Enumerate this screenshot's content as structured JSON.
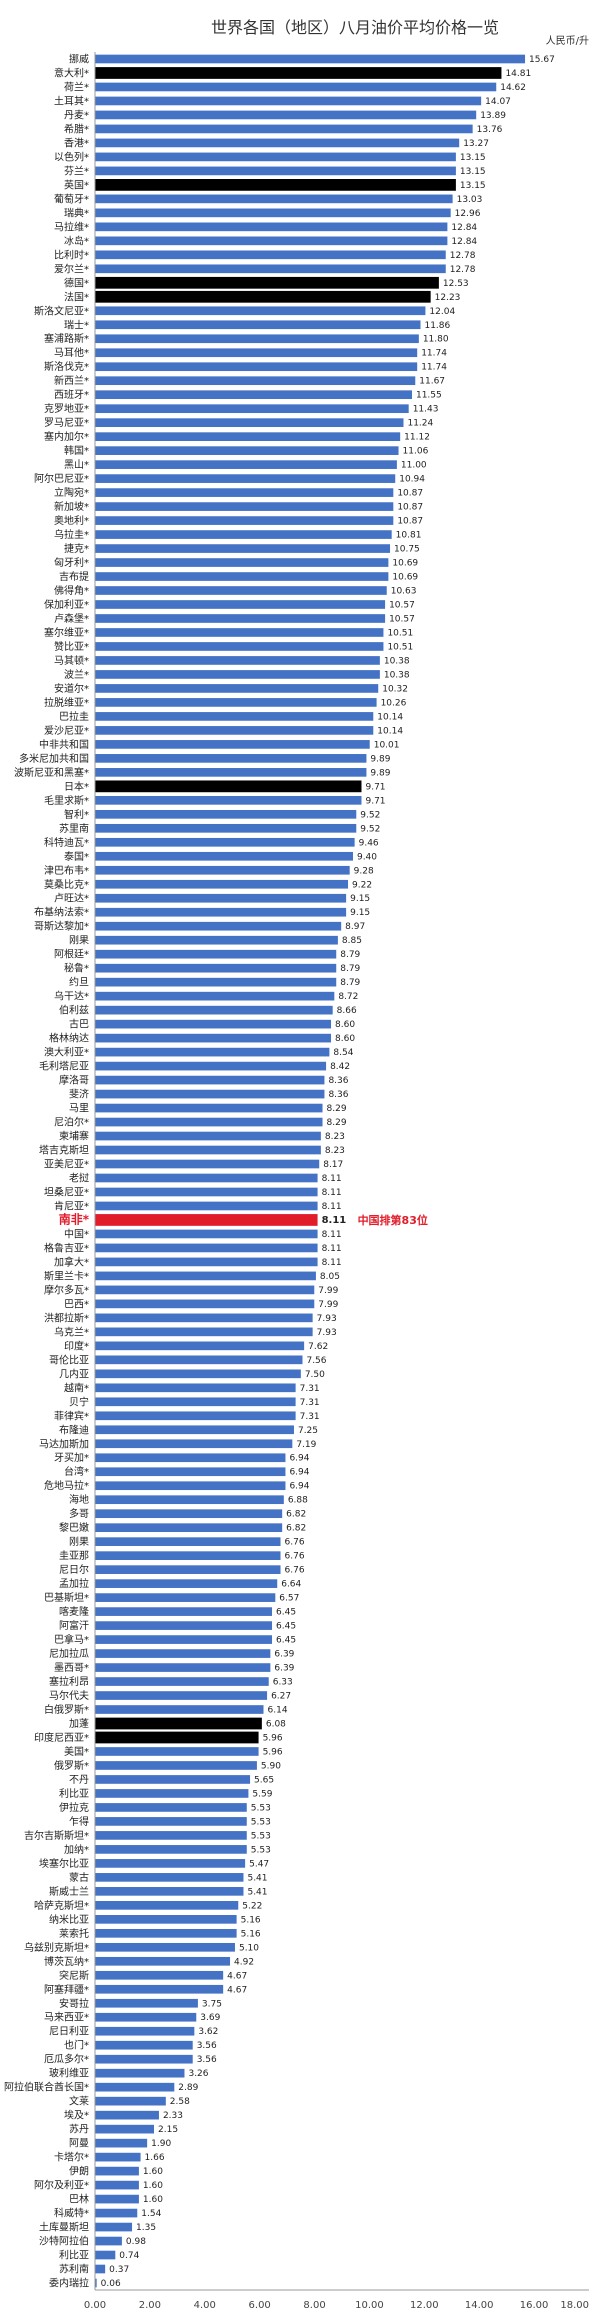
{
  "chart_data": {
    "type": "bar",
    "orientation": "horizontal",
    "title": "世界各国（地区）八月油价平均价格一览",
    "unit_label": "人民币/升",
    "xlim": [
      0,
      18
    ],
    "x_ticks": [
      "0.00",
      "2.00",
      "4.00",
      "6.00",
      "8.00",
      "10.00",
      "12.00",
      "14.00",
      "16.00",
      "18.00"
    ],
    "grid": false,
    "colors": {
      "default": "#4472c4",
      "emphasis": "#000000",
      "highlight": "#e11d2a"
    },
    "annotation": "中国排第83位",
    "categories": [
      "挪威",
      "意大利*",
      "荷兰*",
      "土耳其*",
      "丹麦*",
      "希腊*",
      "香港*",
      "以色列*",
      "芬兰*",
      "英国*",
      "葡萄牙*",
      "瑞典*",
      "马拉维*",
      "冰岛*",
      "比利时*",
      "爱尔兰*",
      "德国*",
      "法国*",
      "斯洛文尼亚*",
      "瑞士*",
      "塞浦路斯*",
      "马耳他*",
      "斯洛伐克*",
      "新西兰*",
      "西班牙*",
      "克罗地亚*",
      "罗马尼亚*",
      "塞内加尔*",
      "韩国*",
      "黑山*",
      "阿尔巴尼亚*",
      "立陶宛*",
      "新加坡*",
      "奥地利*",
      "乌拉圭*",
      "捷克*",
      "匈牙利*",
      "吉布提",
      "佛得角*",
      "保加利亚*",
      "卢森堡*",
      "塞尔维亚*",
      "赞比亚*",
      "马其顿*",
      "波兰*",
      "安道尔*",
      "拉脱维亚*",
      "巴拉圭",
      "爱沙尼亚*",
      "中非共和国",
      "多米尼加共和国",
      "波斯尼亚和黑塞*",
      "日本*",
      "毛里求斯*",
      "智利*",
      "苏里南",
      "科特迪瓦*",
      "泰国*",
      "津巴布韦*",
      "莫桑比克*",
      "卢旺达*",
      "布基纳法索*",
      "哥斯达黎加*",
      "刚果",
      "阿根廷*",
      "秘鲁*",
      "约旦",
      "乌干达*",
      "伯利兹",
      "古巴",
      "格林纳达",
      "澳大利亚*",
      "毛利塔尼亚",
      "摩洛哥",
      "斐济",
      "马里",
      "尼泊尔*",
      "柬埔寨",
      "塔吉克斯坦",
      "亚美尼亚*",
      "老挝",
      "坦桑尼亚*",
      "肯尼亚*",
      "南非*",
      "中国*",
      "格鲁吉亚*",
      "加拿大*",
      "斯里兰卡*",
      "摩尔多瓦*",
      "巴西*",
      "洪都拉斯*",
      "乌克兰*",
      "印度*",
      "哥伦比亚",
      "几内亚",
      "越南*",
      "贝宁",
      "菲律宾*",
      "布隆迪",
      "马达加斯加",
      "牙买加*",
      "台湾*",
      "危地马拉*",
      "海地",
      "多哥",
      "黎巴嫩",
      "刚果",
      "圭亚那",
      "尼日尔",
      "孟加拉",
      "巴基斯坦*",
      "喀麦隆",
      "阿富汗",
      "巴拿马*",
      "尼加拉瓜",
      "墨西哥*",
      "塞拉利昂",
      "马尔代夫",
      "白俄罗斯*",
      "加蓬",
      "印度尼西亚*",
      "美国*",
      "俄罗斯*",
      "不丹",
      "利比亚",
      "伊拉克",
      "乍得",
      "吉尔吉斯斯坦*",
      "加纳*",
      "埃塞尔比亚",
      "蒙古",
      "斯威士兰",
      "哈萨克斯坦*",
      "纳米比亚",
      "莱索托",
      "乌兹别克斯坦*",
      "博茨瓦纳*",
      "突尼斯",
      "阿塞拜疆*",
      "安哥拉",
      "马来西亚*",
      "尼日利亚",
      "也门*",
      "厄瓜多尔*",
      "玻利维亚",
      "阿拉伯联合酋长国*",
      "文莱",
      "埃及*",
      "苏丹",
      "阿曼",
      "卡塔尔*",
      "伊朗",
      "阿尔及利亚*",
      "巴林",
      "科威特*",
      "土库曼斯坦",
      "沙特阿拉伯",
      "利比亚",
      "苏利南",
      "委内瑞拉"
    ],
    "values": [
      15.67,
      14.81,
      14.62,
      14.07,
      13.89,
      13.76,
      13.27,
      13.15,
      13.15,
      13.15,
      13.03,
      12.96,
      12.84,
      12.84,
      12.78,
      12.78,
      12.53,
      12.23,
      12.04,
      11.86,
      11.8,
      11.74,
      11.74,
      11.67,
      11.55,
      11.43,
      11.24,
      11.12,
      11.06,
      11.0,
      10.94,
      10.87,
      10.87,
      10.87,
      10.81,
      10.75,
      10.69,
      10.69,
      10.63,
      10.57,
      10.57,
      10.51,
      10.51,
      10.38,
      10.38,
      10.32,
      10.26,
      10.14,
      10.14,
      10.01,
      9.89,
      9.89,
      9.71,
      9.71,
      9.52,
      9.52,
      9.46,
      9.4,
      9.28,
      9.22,
      9.15,
      9.15,
      8.97,
      8.85,
      8.79,
      8.79,
      8.79,
      8.72,
      8.66,
      8.6,
      8.6,
      8.54,
      8.42,
      8.36,
      8.36,
      8.29,
      8.29,
      8.23,
      8.23,
      8.17,
      8.11,
      8.11,
      8.11,
      8.11,
      8.11,
      8.11,
      8.11,
      8.05,
      7.99,
      7.99,
      7.93,
      7.93,
      7.62,
      7.56,
      7.5,
      7.31,
      7.31,
      7.31,
      7.25,
      7.19,
      6.94,
      6.94,
      6.94,
      6.88,
      6.82,
      6.82,
      6.76,
      6.76,
      6.76,
      6.64,
      6.57,
      6.45,
      6.45,
      6.45,
      6.39,
      6.39,
      6.33,
      6.27,
      6.14,
      6.08,
      5.96,
      5.96,
      5.9,
      5.65,
      5.59,
      5.53,
      5.53,
      5.53,
      5.53,
      5.47,
      5.41,
      5.41,
      5.22,
      5.16,
      5.16,
      5.1,
      4.92,
      4.67,
      4.67,
      3.75,
      3.69,
      3.62,
      3.56,
      3.56,
      3.26,
      2.89,
      2.58,
      2.33,
      2.15,
      1.9,
      1.66,
      1.6,
      1.6,
      1.6,
      1.54,
      1.35,
      0.98,
      0.74,
      0.37,
      0.06
    ],
    "emphasis": [
      1,
      9,
      16,
      17,
      52,
      83,
      119,
      120
    ],
    "highlight": 83
  }
}
